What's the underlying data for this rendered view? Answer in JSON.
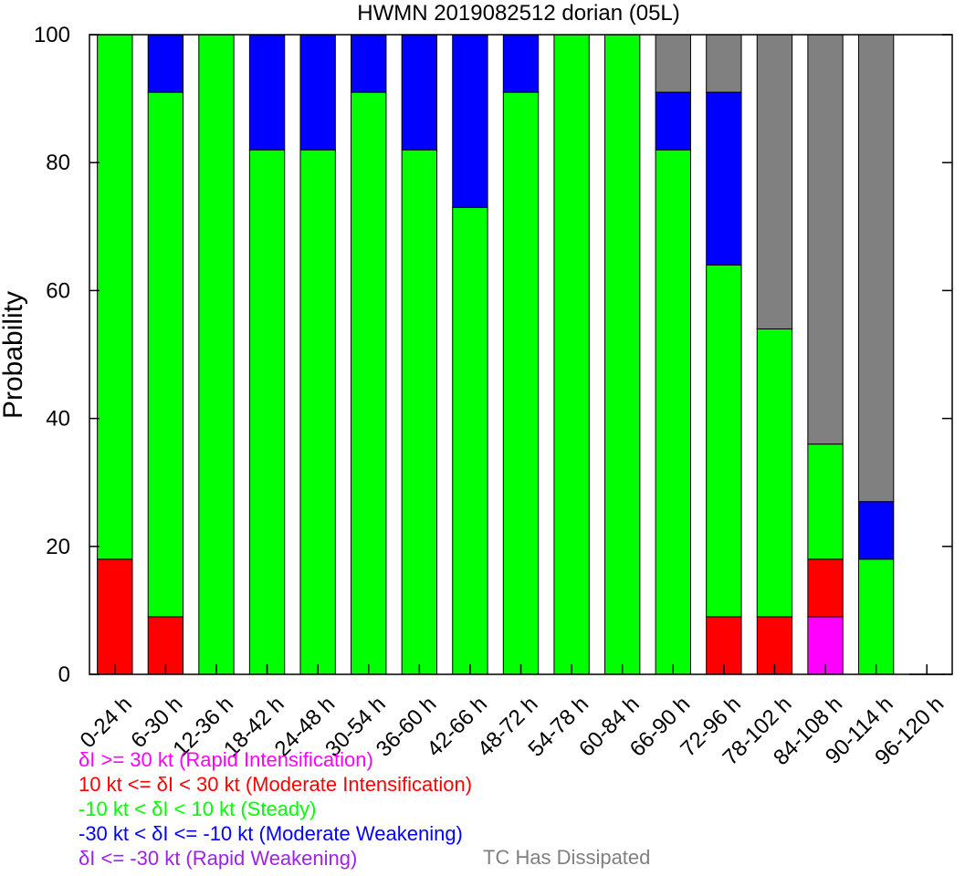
{
  "chart_data": {
    "type": "bar",
    "stacked": true,
    "title": "HWMN 2019082512 dorian (05L)",
    "xlabel": "",
    "ylabel": "Probability",
    "ylim": [
      0,
      100
    ],
    "yticks": [
      0,
      20,
      40,
      60,
      80,
      100
    ],
    "grid": false,
    "legend_placement": "bottom",
    "categories": [
      "0-24 h",
      "6-30 h",
      "12-36 h",
      "18-42 h",
      "24-48 h",
      "30-54 h",
      "36-60 h",
      "42-66 h",
      "48-72 h",
      "54-78 h",
      "60-84 h",
      "66-90 h",
      "72-96 h",
      "78-102 h",
      "84-108 h",
      "90-114 h",
      "96-120 h"
    ],
    "series": [
      {
        "key": "ri",
        "color": "#ff00ff",
        "values": [
          0,
          0,
          0,
          0,
          0,
          0,
          0,
          0,
          0,
          0,
          0,
          0,
          0,
          0,
          9,
          0,
          0
        ]
      },
      {
        "key": "mi",
        "color": "#ff0000",
        "values": [
          18,
          9,
          0,
          0,
          0,
          0,
          0,
          0,
          0,
          0,
          0,
          0,
          9,
          9,
          9,
          0,
          0
        ]
      },
      {
        "key": "steady",
        "color": "#00ff00",
        "values": [
          82,
          82,
          100,
          82,
          82,
          91,
          82,
          73,
          91,
          100,
          100,
          82,
          55,
          45,
          18,
          18,
          0
        ]
      },
      {
        "key": "mw",
        "color": "#0000ff",
        "values": [
          0,
          9,
          0,
          18,
          18,
          9,
          18,
          27,
          9,
          0,
          0,
          9,
          27,
          0,
          0,
          9,
          0
        ]
      },
      {
        "key": "rw",
        "color": "#a020f0",
        "values": [
          0,
          0,
          0,
          0,
          0,
          0,
          0,
          0,
          0,
          0,
          0,
          0,
          0,
          0,
          0,
          0,
          0
        ]
      },
      {
        "key": "dissipated",
        "color": "#808080",
        "values": [
          0,
          0,
          0,
          0,
          0,
          0,
          0,
          0,
          0,
          0,
          0,
          9,
          9,
          46,
          64,
          73,
          0
        ]
      }
    ]
  },
  "legend": {
    "items": [
      {
        "text": "δI >= 30 kt (Rapid Intensification)",
        "color": "#ff00ff"
      },
      {
        "text": "10 kt <= δI < 30 kt (Moderate Intensification)",
        "color": "#ff0000"
      },
      {
        "text": "-10 kt < δI < 10 kt (Steady)",
        "color": "#00ff00"
      },
      {
        "text": "-30 kt < δI <= -10 kt (Moderate Weakening)",
        "color": "#0000ff"
      },
      {
        "text": "δI <= -30 kt (Rapid Weakening)",
        "color": "#a020f0"
      }
    ],
    "dissipated": {
      "text": "TC Has Dissipated",
      "color": "#808080"
    }
  }
}
